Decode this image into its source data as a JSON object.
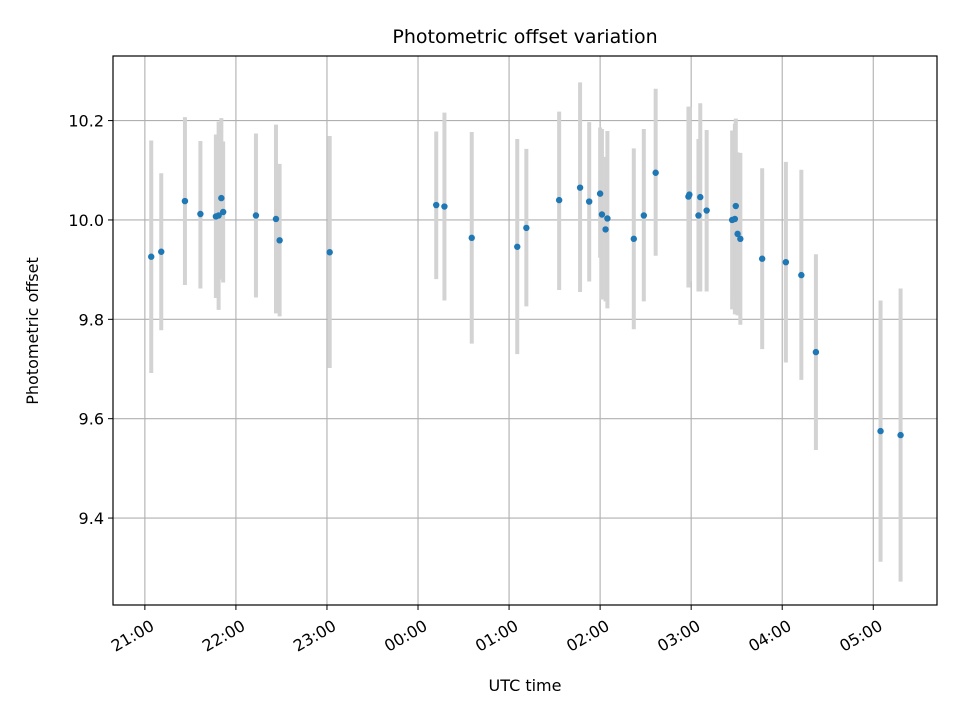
{
  "chart_data": {
    "type": "scatter",
    "title": "Photometric offset variation",
    "xlabel": "UTC time",
    "ylabel": "Photometric offset",
    "x_unit": "hours",
    "xlim": [
      -3.35,
      5.7
    ],
    "ylim": [
      9.225,
      10.33
    ],
    "xticks": [
      {
        "value": -3,
        "label": "21:00"
      },
      {
        "value": -2,
        "label": "22:00"
      },
      {
        "value": -1,
        "label": "23:00"
      },
      {
        "value": 0,
        "label": "00:00"
      },
      {
        "value": 1,
        "label": "01:00"
      },
      {
        "value": 2,
        "label": "02:00"
      },
      {
        "value": 3,
        "label": "03:00"
      },
      {
        "value": 4,
        "label": "04:00"
      },
      {
        "value": 5,
        "label": "05:00"
      }
    ],
    "yticks": [
      {
        "value": 9.4,
        "label": "9.4"
      },
      {
        "value": 9.6,
        "label": "9.6"
      },
      {
        "value": 9.8,
        "label": "9.8"
      },
      {
        "value": 10.0,
        "label": "10.0"
      },
      {
        "value": 10.2,
        "label": "10.2"
      }
    ],
    "grid": true,
    "colors": {
      "point": "#1f77b4",
      "errorbar": "#d3d3d3",
      "grid": "#b0b0b0"
    },
    "points": [
      {
        "x": -2.93,
        "y": 9.926,
        "lo": 9.692,
        "hi": 10.16
      },
      {
        "x": -2.82,
        "y": 9.936,
        "lo": 9.778,
        "hi": 10.094
      },
      {
        "x": -2.56,
        "y": 10.038,
        "lo": 9.869,
        "hi": 10.207
      },
      {
        "x": -2.39,
        "y": 10.012,
        "lo": 9.862,
        "hi": 10.159
      },
      {
        "x": -2.22,
        "y": 10.007,
        "lo": 9.843,
        "hi": 10.172
      },
      {
        "x": -2.19,
        "y": 10.009,
        "lo": 9.819,
        "hi": 10.198
      },
      {
        "x": -2.16,
        "y": 10.044,
        "lo": 9.88,
        "hi": 10.205
      },
      {
        "x": -2.14,
        "y": 10.016,
        "lo": 9.874,
        "hi": 10.158
      },
      {
        "x": -1.78,
        "y": 10.009,
        "lo": 9.844,
        "hi": 10.174
      },
      {
        "x": -1.56,
        "y": 10.002,
        "lo": 9.812,
        "hi": 10.192
      },
      {
        "x": -1.52,
        "y": 9.959,
        "lo": 9.806,
        "hi": 10.113
      },
      {
        "x": -0.97,
        "y": 9.935,
        "lo": 9.702,
        "hi": 10.169
      },
      {
        "x": 0.2,
        "y": 10.03,
        "lo": 9.881,
        "hi": 10.178
      },
      {
        "x": 0.29,
        "y": 10.027,
        "lo": 9.838,
        "hi": 10.216
      },
      {
        "x": 0.59,
        "y": 9.964,
        "lo": 9.751,
        "hi": 10.177
      },
      {
        "x": 1.09,
        "y": 9.946,
        "lo": 9.73,
        "hi": 10.163
      },
      {
        "x": 1.19,
        "y": 9.984,
        "lo": 9.826,
        "hi": 10.143
      },
      {
        "x": 1.55,
        "y": 10.04,
        "lo": 9.859,
        "hi": 10.218
      },
      {
        "x": 1.78,
        "y": 10.065,
        "lo": 9.855,
        "hi": 10.277
      },
      {
        "x": 1.88,
        "y": 10.037,
        "lo": 9.876,
        "hi": 10.197
      },
      {
        "x": 2.0,
        "y": 10.053,
        "lo": 9.924,
        "hi": 10.186
      },
      {
        "x": 2.02,
        "y": 10.011,
        "lo": 9.84,
        "hi": 10.183
      },
      {
        "x": 2.06,
        "y": 9.981,
        "lo": 9.836,
        "hi": 10.127
      },
      {
        "x": 2.08,
        "y": 10.003,
        "lo": 9.822,
        "hi": 10.179
      },
      {
        "x": 2.37,
        "y": 9.962,
        "lo": 9.78,
        "hi": 10.144
      },
      {
        "x": 2.48,
        "y": 10.009,
        "lo": 9.836,
        "hi": 10.183
      },
      {
        "x": 2.61,
        "y": 10.095,
        "lo": 9.928,
        "hi": 10.264
      },
      {
        "x": 2.97,
        "y": 10.047,
        "lo": 9.864,
        "hi": 10.228
      },
      {
        "x": 2.98,
        "y": 10.051,
        "lo": 9.876,
        "hi": 10.227
      },
      {
        "x": 3.08,
        "y": 10.009,
        "lo": 9.856,
        "hi": 10.163
      },
      {
        "x": 3.1,
        "y": 10.046,
        "lo": 9.856,
        "hi": 10.235
      },
      {
        "x": 3.17,
        "y": 10.019,
        "lo": 9.856,
        "hi": 10.181
      },
      {
        "x": 3.45,
        "y": 10.0,
        "lo": 9.82,
        "hi": 10.18
      },
      {
        "x": 3.48,
        "y": 10.002,
        "lo": 9.81,
        "hi": 10.194
      },
      {
        "x": 3.49,
        "y": 10.028,
        "lo": 9.852,
        "hi": 10.204
      },
      {
        "x": 3.51,
        "y": 9.972,
        "lo": 9.808,
        "hi": 10.136
      },
      {
        "x": 3.54,
        "y": 9.962,
        "lo": 9.789,
        "hi": 10.135
      },
      {
        "x": 3.78,
        "y": 9.922,
        "lo": 9.74,
        "hi": 10.104
      },
      {
        "x": 4.04,
        "y": 9.915,
        "lo": 9.713,
        "hi": 10.117
      },
      {
        "x": 4.21,
        "y": 9.889,
        "lo": 9.678,
        "hi": 10.101
      },
      {
        "x": 4.37,
        "y": 9.734,
        "lo": 9.537,
        "hi": 9.931
      },
      {
        "x": 5.08,
        "y": 9.575,
        "lo": 9.312,
        "hi": 9.838
      },
      {
        "x": 5.3,
        "y": 9.567,
        "lo": 9.272,
        "hi": 9.862
      }
    ]
  }
}
